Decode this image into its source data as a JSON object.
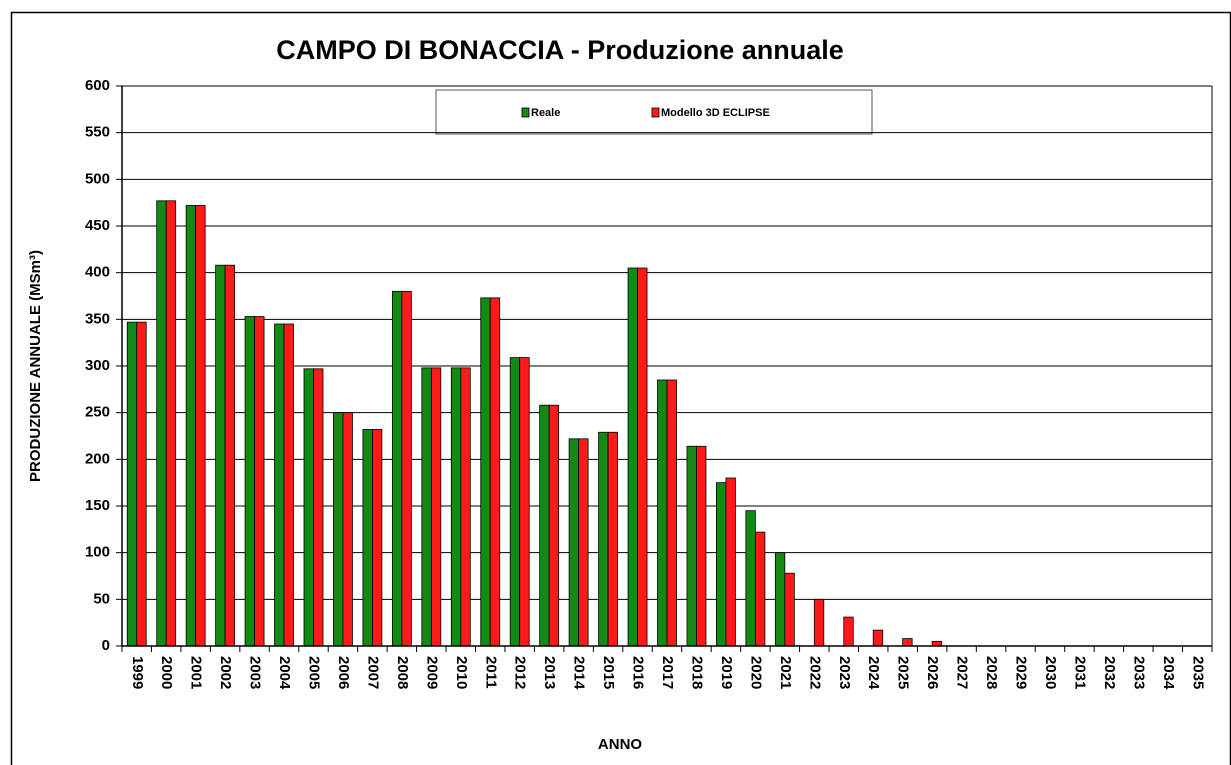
{
  "chart_data": {
    "type": "bar",
    "title": "CAMPO DI BONACCIA  - Produzione annuale",
    "x_label": "ANNO",
    "y_label": "PRODUZIONE ANNUALE (MSm³)",
    "categories": [
      "1999",
      "2000",
      "2001",
      "2002",
      "2003",
      "2004",
      "2005",
      "2006",
      "2007",
      "2008",
      "2009",
      "2010",
      "2011",
      "2012",
      "2013",
      "2014",
      "2015",
      "2016",
      "2017",
      "2018",
      "2019",
      "2020",
      "2021",
      "2022",
      "2023",
      "2024",
      "2025",
      "2026",
      "2027",
      "2028",
      "2029",
      "2030",
      "2031",
      "2032",
      "2033",
      "2034",
      "2035"
    ],
    "series": [
      {
        "name": "Reale",
        "color": "#138a13",
        "values": [
          347,
          477,
          472,
          408,
          353,
          345,
          297,
          250,
          232,
          380,
          298,
          298,
          373,
          309,
          258,
          222,
          229,
          405,
          285,
          214,
          175,
          145,
          100,
          null,
          null,
          null,
          null,
          null,
          null,
          null,
          null,
          null,
          null,
          null,
          null,
          null,
          null
        ]
      },
      {
        "name": "Modello 3D ECLIPSE",
        "color": "#ff1a1a",
        "values": [
          347,
          477,
          472,
          408,
          353,
          345,
          297,
          250,
          232,
          380,
          298,
          298,
          373,
          309,
          258,
          222,
          229,
          405,
          285,
          214,
          180,
          122,
          78,
          50,
          31,
          17,
          8,
          5,
          null,
          null,
          null,
          null,
          null,
          null,
          null,
          null,
          null
        ]
      }
    ],
    "ylim": [
      0,
      600
    ],
    "yticks": [
      0,
      50,
      100,
      150,
      200,
      250,
      300,
      350,
      400,
      450,
      500,
      550,
      600
    ],
    "grid": true
  }
}
